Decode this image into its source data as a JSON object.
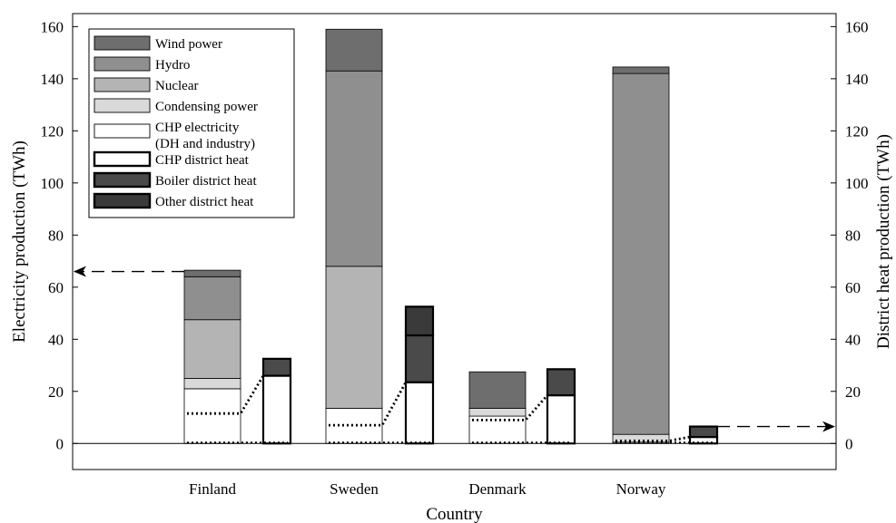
{
  "chart_data": {
    "type": "bar",
    "title": "",
    "xlabel": "Country",
    "ylabel_left": "Electricity production (TWh)",
    "ylabel_right": "District heat production (TWh)",
    "ylim": [
      -10,
      165
    ],
    "yticks": [
      0,
      20,
      40,
      60,
      80,
      100,
      120,
      140,
      160
    ],
    "categories": [
      "Finland",
      "Sweden",
      "Denmark",
      "Norway"
    ],
    "legend_position": "top-left",
    "legend": [
      {
        "label": "Wind power",
        "color": "#6e6e6e",
        "thick": false
      },
      {
        "label": "Hydro",
        "color": "#8f8f8f",
        "thick": false
      },
      {
        "label": "Nuclear",
        "color": "#b4b4b4",
        "thick": false
      },
      {
        "label": "Condensing power",
        "color": "#d9d9d9",
        "thick": false
      },
      {
        "label": "CHP electricity",
        "label2": "(DH and industry)",
        "color": "#ffffff",
        "thick": false
      },
      {
        "label": "CHP district heat",
        "color": "#ffffff",
        "thick": true
      },
      {
        "label": "Boiler district heat",
        "color": "#4a4a4a",
        "thick": true
      },
      {
        "label": "Other district heat",
        "color": "#3a3a3a",
        "thick": true
      }
    ],
    "electricity": [
      {
        "country": "Finland",
        "chp": 21,
        "condensing": 4,
        "nuclear": 22.5,
        "hydro": 16.5,
        "wind": 2.5
      },
      {
        "country": "Sweden",
        "chp": 13.5,
        "condensing": 0,
        "nuclear": 54.5,
        "hydro": 75,
        "wind": 16
      },
      {
        "country": "Denmark",
        "chp": 10.5,
        "condensing": 3,
        "nuclear": 0,
        "hydro": 0,
        "wind": 14
      },
      {
        "country": "Norway",
        "chp": 0.5,
        "condensing": 3,
        "nuclear": 0,
        "hydro": 138.5,
        "wind": 2.5
      }
    ],
    "district_heat": [
      {
        "country": "Finland",
        "chp": 26,
        "boiler": 6.5,
        "other": 0
      },
      {
        "country": "Sweden",
        "chp": 23.5,
        "boiler": 18,
        "other": 11
      },
      {
        "country": "Denmark",
        "chp": 18.5,
        "boiler": 10,
        "other": 0
      },
      {
        "country": "Norway",
        "chp": 2.5,
        "boiler": 4,
        "other": 0
      }
    ],
    "dotted_link_levels": [
      11.5,
      7,
      9,
      1
    ],
    "annotations": [
      {
        "type": "arrow",
        "from": "Finland",
        "to": "left-axis",
        "value": 66
      },
      {
        "type": "arrow",
        "from": "Norway",
        "to": "right-axis",
        "value": 6.5
      }
    ]
  }
}
